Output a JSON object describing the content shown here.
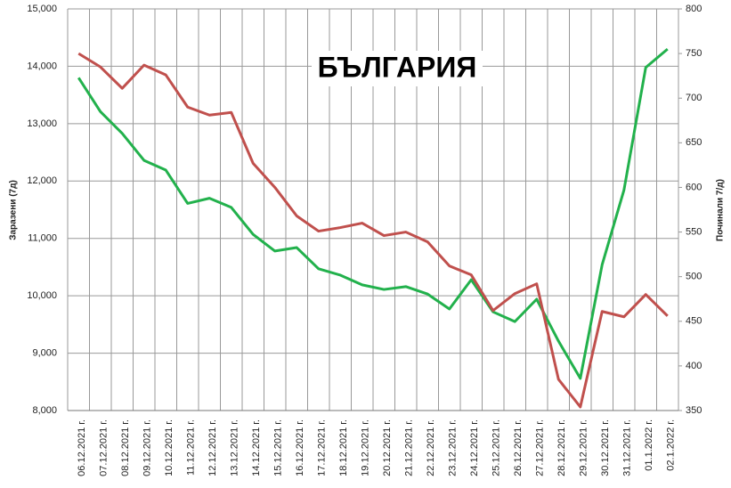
{
  "chart_data": {
    "type": "line",
    "title": "БЪЛГАРИЯ",
    "y_label": "Заразени (7д)",
    "y2_label": "Починали 7/д)",
    "categories": [
      "06.12.2021 г.",
      "07.12.2021 г.",
      "08.12.2021 г.",
      "09.12.2021 г.",
      "10.12.2021 г.",
      "11.12.2021 г.",
      "12.12.2021 г.",
      "13.12.2021 г.",
      "14.12.2021 г.",
      "15.12.2021 г.",
      "16.12.2021 г.",
      "17.12.2021 г.",
      "18.12.2021 г.",
      "19.12.2021 г.",
      "20.12.2021 г.",
      "21.12.2021 г.",
      "22.12.2021 г.",
      "23.12.2021 г.",
      "24.12.2021 г.",
      "25.12.2021 г.",
      "26.12.2021 г.",
      "27.12.2021 г.",
      "28.12.2021 г.",
      "29.12.2021 г.",
      "30.12.2021 г.",
      "31.12.2021 г.",
      "01.1.2022 г.",
      "02.1.2022 г."
    ],
    "series": [
      {
        "color": "#22b14c",
        "axis": "y",
        "values": [
          13800,
          13210,
          12830,
          12360,
          12190,
          11610,
          11700,
          11540,
          11070,
          10780,
          10840,
          10470,
          10360,
          10190,
          10110,
          10160,
          10030,
          9770,
          10280,
          9720,
          9550,
          9940,
          9210,
          8560,
          10540,
          11840,
          13980,
          14300
        ]
      },
      {
        "color": "#c0504d",
        "axis": "y2",
        "values": [
          750,
          735,
          711,
          737,
          726,
          690,
          681,
          684,
          627,
          600,
          568,
          551,
          555,
          560,
          546,
          550,
          539,
          512,
          502,
          462,
          481,
          492,
          385,
          354,
          461,
          455,
          480,
          456
        ]
      }
    ],
    "ylim": [
      8000,
      15000
    ],
    "yticks": [
      {
        "value": 8000,
        "label": "8,000"
      },
      {
        "value": 9000,
        "label": "9,000"
      },
      {
        "value": 10000,
        "label": "10,000"
      },
      {
        "value": 11000,
        "label": "11,000"
      },
      {
        "value": 12000,
        "label": "12,000"
      },
      {
        "value": 13000,
        "label": "13,000"
      },
      {
        "value": 14000,
        "label": "14,000"
      },
      {
        "value": 15000,
        "label": "15,000"
      }
    ],
    "y2lim": [
      350,
      800
    ],
    "y2ticks": [
      350,
      400,
      450,
      500,
      550,
      600,
      650,
      700,
      750,
      800
    ],
    "grid": true
  }
}
